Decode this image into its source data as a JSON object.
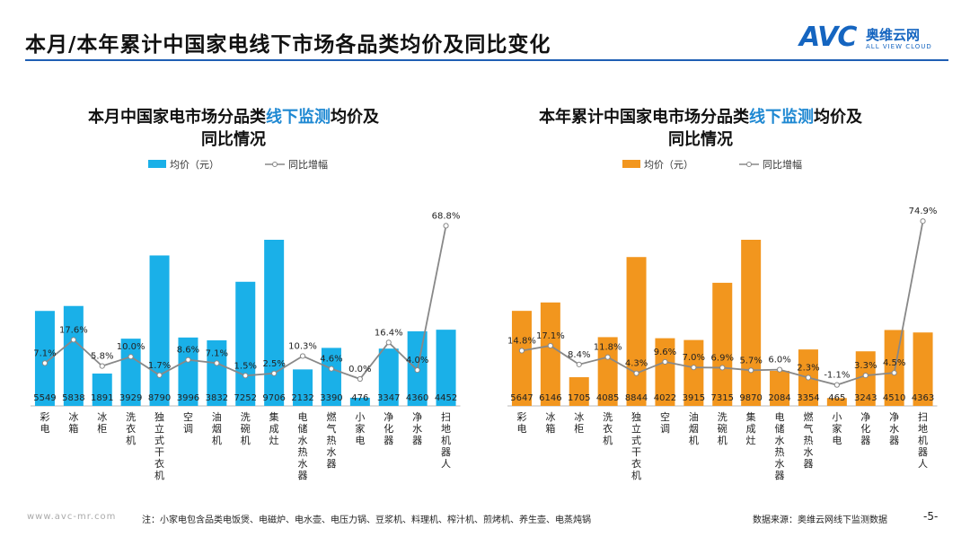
{
  "page": {
    "title": "本月/本年累计中国家电线下市场各品类均价及同比变化",
    "logo_text": "AVC",
    "logo_cn": "奥维云网",
    "logo_en": "ALL VIEW CLOUD",
    "footer_url": "www.avc-mr.com",
    "footer_note": "注：小家电包含品类电饭煲、电磁炉、电水壶、电压力锅、豆浆机、料理机、榨汁机、煎烤机、养生壶、电蒸炖锅",
    "footer_source": "数据来源：奥维云网线下监测数据",
    "page_number": "-5-"
  },
  "chart_data": [
    {
      "type": "bar",
      "title_pre": "本月中国家电市场分品类",
      "title_hl": "线下监测",
      "title_post": "均价及",
      "title_line2": "同比情况",
      "categories": [
        "彩电",
        "冰箱",
        "冰柜",
        "洗衣机",
        "独立式干衣机",
        "空调",
        "油烟机",
        "洗碗机",
        "集成灶",
        "电储水热水器",
        "燃气热水器",
        "小家电",
        "净化器",
        "净水器",
        "扫地机器人"
      ],
      "series": [
        {
          "name": "均价（元）",
          "type": "bar",
          "values": [
            5549,
            5838,
            1891,
            3929,
            8790,
            3996,
            3832,
            7252,
            9706,
            2132,
            3390,
            476,
            3347,
            4360,
            4452
          ]
        },
        {
          "name": "同比增幅",
          "type": "line",
          "values": [
            7.1,
            17.6,
            5.8,
            10.0,
            1.7,
            8.6,
            7.1,
            1.5,
            2.5,
            10.3,
            4.6,
            0.0,
            16.4,
            4.0,
            68.8
          ]
        }
      ],
      "bar_color": "#1ab0e8",
      "line_color": "#888888"
    },
    {
      "type": "bar",
      "title_pre": "本年累计中国家电市场分品类",
      "title_hl": "线下监测",
      "title_post": "均价及",
      "title_line2": "同比情况",
      "categories": [
        "彩电",
        "冰箱",
        "冰柜",
        "洗衣机",
        "独立式干衣机",
        "空调",
        "油烟机",
        "洗碗机",
        "集成灶",
        "电储水热水器",
        "燃气热水器",
        "小家电",
        "净化器",
        "净水器",
        "扫地机器人"
      ],
      "series": [
        {
          "name": "均价（元）",
          "type": "bar",
          "values": [
            5647,
            6146,
            1705,
            4085,
            8844,
            4022,
            3915,
            7315,
            9870,
            2084,
            3354,
            465,
            3243,
            4510,
            4363
          ]
        },
        {
          "name": "同比增幅",
          "type": "line",
          "values": [
            14.8,
            17.1,
            8.4,
            11.8,
            4.3,
            9.6,
            7.0,
            6.9,
            5.7,
            6.0,
            2.3,
            -1.1,
            3.3,
            4.5,
            74.9
          ]
        }
      ],
      "bar_color": "#f2961e",
      "line_color": "#888888"
    }
  ]
}
